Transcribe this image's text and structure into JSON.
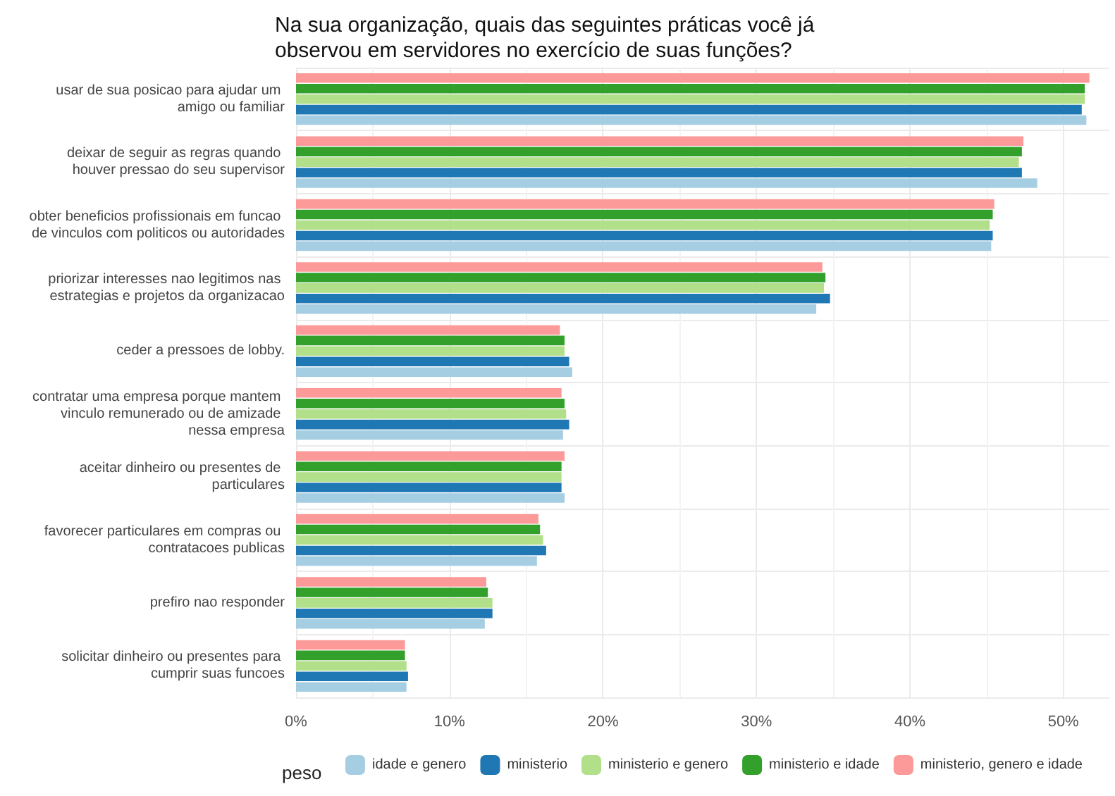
{
  "chart_data": {
    "type": "bar",
    "orientation": "horizontal",
    "title": "Na sua organização, quais das seguintes práticas você já observou em servidores no exercício de suas funções?",
    "categories": [
      "usar de sua posicao para ajudar um amigo ou familiar",
      "deixar de seguir as regras quando houver pressao do seu supervisor",
      "obter beneficios profissionais em funcao de vinculos com politicos ou autoridades",
      "priorizar interesses nao legitimos nas estrategias e projetos da organizacao",
      "ceder a pressoes de lobby.",
      "contratar uma empresa porque mantem vinculo remunerado ou de amizade nessa empresa",
      "aceitar dinheiro ou presentes de particulares",
      "favorecer particulares em compras ou contratacoes publicas",
      "prefiro nao responder",
      "solicitar dinheiro ou presentes para cumprir suas funcoes"
    ],
    "series": [
      {
        "name": "idade e genero",
        "color": "#a6cee3",
        "values": [
          51.5,
          48.3,
          45.3,
          33.9,
          18.0,
          17.4,
          17.5,
          15.7,
          12.3,
          7.2
        ]
      },
      {
        "name": "ministerio",
        "color": "#1f78b4",
        "values": [
          51.2,
          47.3,
          45.4,
          34.8,
          17.8,
          17.8,
          17.3,
          16.3,
          12.8,
          7.3
        ]
      },
      {
        "name": "ministerio e genero",
        "color": "#b2df8a",
        "values": [
          51.4,
          47.1,
          45.2,
          34.4,
          17.5,
          17.6,
          17.3,
          16.1,
          12.8,
          7.2
        ]
      },
      {
        "name": "ministerio e idade",
        "color": "#33a02c",
        "values": [
          51.4,
          47.3,
          45.4,
          34.5,
          17.5,
          17.5,
          17.3,
          15.9,
          12.5,
          7.1
        ]
      },
      {
        "name": "ministerio, genero e idade",
        "color": "#fb9a99",
        "values": [
          51.7,
          47.4,
          45.5,
          34.3,
          17.2,
          17.3,
          17.5,
          15.8,
          12.4,
          7.1
        ]
      }
    ],
    "xlim": [
      0,
      53
    ],
    "xticks": [
      {
        "value": 0,
        "label": "0%"
      },
      {
        "value": 10,
        "label": "10%"
      },
      {
        "value": 20,
        "label": "20%"
      },
      {
        "value": 30,
        "label": "30%"
      },
      {
        "value": 40,
        "label": "40%"
      },
      {
        "value": 50,
        "label": "50%"
      }
    ],
    "grid": true,
    "legend": "bottom",
    "legend_title": "peso"
  }
}
